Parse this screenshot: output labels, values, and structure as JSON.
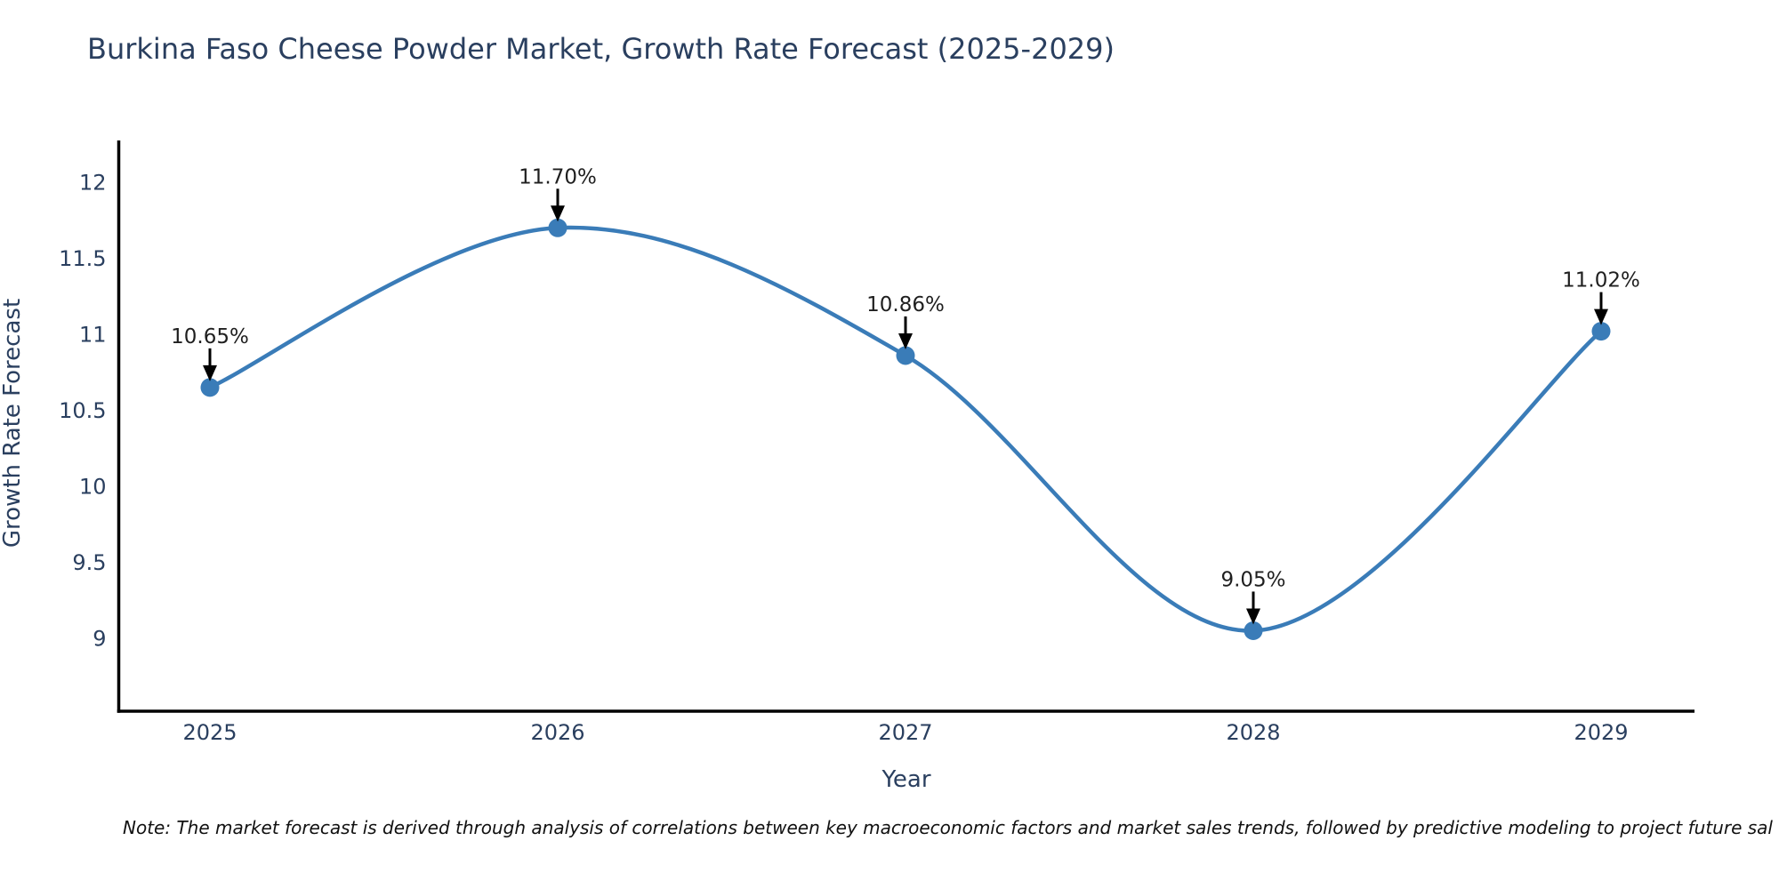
{
  "title": "Burkina Faso Cheese Powder Market, Growth Rate Forecast (2025-2029)",
  "note": "Note: The market forecast is derived through analysis of correlations between key macroeconomic factors and market sales trends, followed by predictive modeling to project future sal",
  "chart_data": {
    "type": "line",
    "title": "Burkina Faso Cheese Powder Market, Growth Rate Forecast (2025-2029)",
    "xlabel": "Year",
    "ylabel": "Growth Rate Forecast",
    "x": [
      2025,
      2026,
      2027,
      2028,
      2029
    ],
    "x_tick_labels": [
      "2025",
      "2026",
      "2027",
      "2028",
      "2029"
    ],
    "series": [
      {
        "name": "Growth Rate Forecast",
        "values": [
          10.65,
          11.7,
          10.86,
          9.05,
          11.02
        ],
        "point_labels": [
          "10.65%",
          "11.70%",
          "10.86%",
          "9.05%",
          "11.02%"
        ]
      }
    ],
    "y_ticks": [
      9,
      9.5,
      10,
      10.5,
      11,
      11.5,
      12
    ],
    "y_tick_labels": [
      "9",
      "9.5",
      "10",
      "10.5",
      "11",
      "11.5",
      "12"
    ],
    "ylim": [
      8.52,
      12.26
    ],
    "xlim": [
      2024.74,
      2029.27
    ],
    "line_shape": "spline",
    "grid": false,
    "legend": "none",
    "colors": {
      "line": "#3a7cb8",
      "marker": "#3a7cb8",
      "arrow": "#000000",
      "axis": "#000000",
      "tick_text": "#2a3f5f",
      "annotation_text": "#1f1f1f",
      "title_text": "#2a3f5f"
    }
  }
}
